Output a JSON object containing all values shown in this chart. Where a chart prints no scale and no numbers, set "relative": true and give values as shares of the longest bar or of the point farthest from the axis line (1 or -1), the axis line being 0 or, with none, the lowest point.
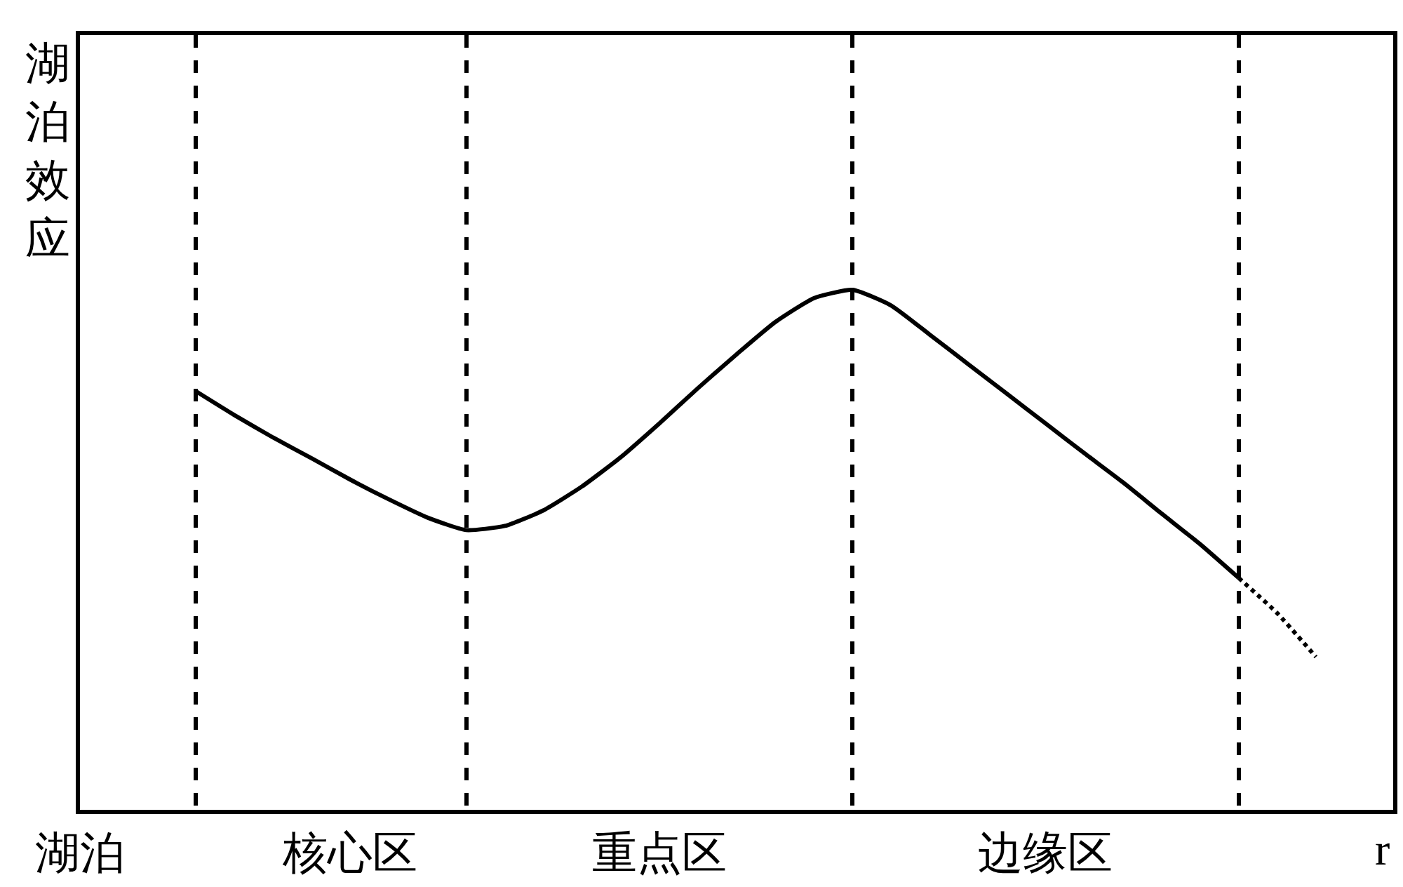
{
  "chart_data": {
    "type": "line",
    "relative": true,
    "ylabel": "湖泊效应",
    "xlabel": "r",
    "categories": [
      "湖泊",
      null,
      null,
      null,
      null,
      null,
      null,
      "核心区",
      null,
      null,
      null,
      null,
      null,
      null,
      null,
      "重点区",
      null,
      null,
      null,
      null,
      null,
      null,
      null,
      null,
      null,
      "边缘区",
      null,
      null,
      null,
      null,
      null,
      null,
      null,
      null,
      null
    ],
    "tick_labels": "x",
    "grid": "x",
    "legend": false,
    "marker": "none",
    "series": [
      {
        "color": "#000000",
        "line_style": "solid",
        "values": [
          null,
          null,
          null,
          0.805,
          0.759,
          0.716,
          0.676,
          0.635,
          0.597,
          0.562,
          0.538,
          0.546,
          0.576,
          0.622,
          0.678,
          0.743,
          0.811,
          0.876,
          0.938,
          0.984,
          1,
          0.97,
          0.914,
          0.857,
          0.8,
          0.743,
          0.686,
          0.63,
          0.57,
          0.511,
          0.446,
          null,
          null,
          null,
          null
        ]
      },
      {
        "color": "#000000",
        "line_style": "dotted",
        "values": [
          null,
          null,
          null,
          null,
          null,
          null,
          null,
          null,
          null,
          null,
          null,
          null,
          null,
          null,
          null,
          null,
          null,
          null,
          null,
          null,
          null,
          null,
          null,
          null,
          null,
          null,
          null,
          null,
          null,
          null,
          0.446,
          0.378,
          0.294,
          null,
          null
        ]
      }
    ]
  }
}
